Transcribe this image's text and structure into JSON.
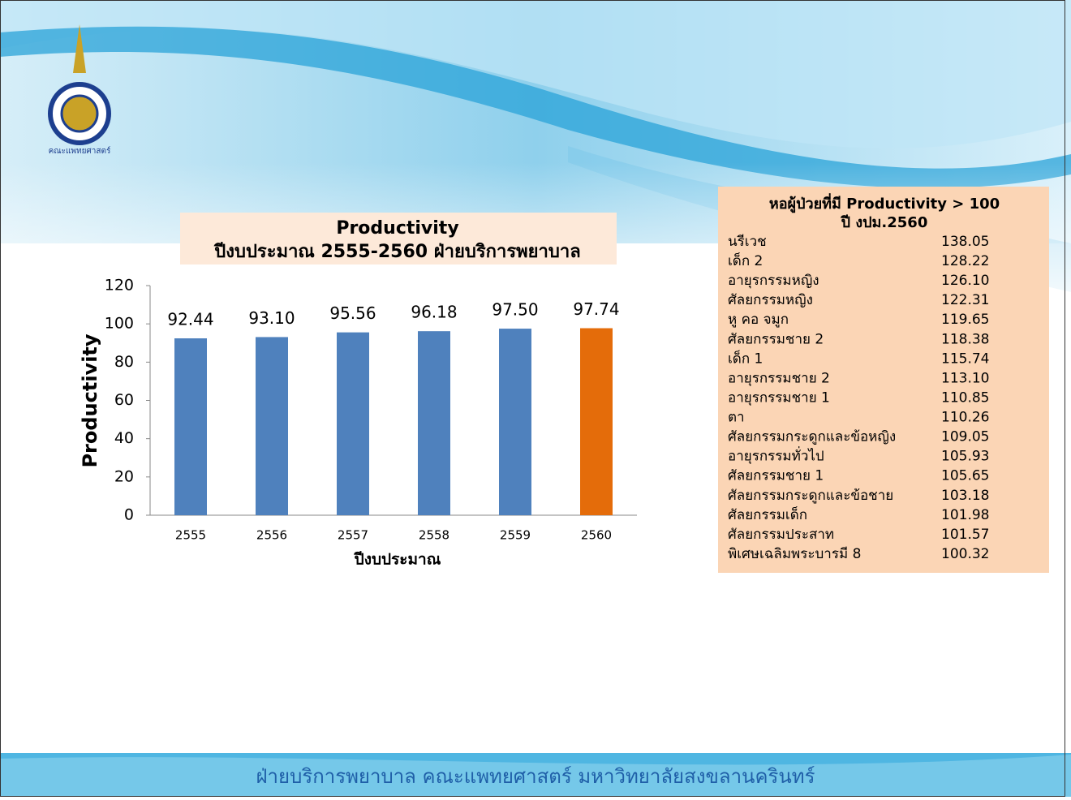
{
  "chart_data": {
    "type": "bar",
    "title": "Productivity",
    "subtitle": "ปีงบประมาณ 2555-2560 ฝ่ายบริการพยาบาล",
    "x_label": "ปีงบประมาณ",
    "y_label": "Productivity",
    "categories": [
      "2555",
      "2556",
      "2557",
      "2558",
      "2559",
      "2560"
    ],
    "values": [
      92.44,
      93.1,
      95.56,
      96.18,
      97.5,
      97.74
    ],
    "value_labels": [
      "92.44",
      "93.10",
      "95.56",
      "96.18",
      "97.50",
      "97.74"
    ],
    "colors": [
      "#4f81bd",
      "#4f81bd",
      "#4f81bd",
      "#4f81bd",
      "#4f81bd",
      "#e46c0a"
    ],
    "ylim": [
      0,
      120
    ],
    "yticks": [
      0,
      20,
      40,
      60,
      80,
      100,
      120
    ],
    "grid": false
  },
  "table": {
    "title": "หอผู้ป่วยที่มี Productivity > 100",
    "subtitle": "ปี งปม.2560",
    "rows": [
      [
        "นรีเวช",
        "138.05"
      ],
      [
        "เด็ก 2",
        "128.22"
      ],
      [
        "อายุรกรรมหญิง",
        "126.10"
      ],
      [
        "ศัลยกรรมหญิง",
        "122.31"
      ],
      [
        "หู คอ จมูก",
        "119.65"
      ],
      [
        "ศัลยกรรมชาย 2",
        "118.38"
      ],
      [
        "เด็ก 1",
        "115.74"
      ],
      [
        "อายุรกรรมชาย 2",
        "113.10"
      ],
      [
        "อายุรกรรมชาย 1",
        "110.85"
      ],
      [
        "ตา",
        "110.26"
      ],
      [
        "ศัลยกรรมกระดูกและข้อหญิง",
        "109.05"
      ],
      [
        "อายุรกรรมทั่วไป",
        "105.93"
      ],
      [
        "ศัลยกรรมชาย   1",
        "105.65"
      ],
      [
        "ศัลยกรรมกระดูกและข้อชาย",
        "103.18"
      ],
      [
        "ศัลยกรรมเด็ก",
        "101.98"
      ],
      [
        "ศัลยกรรมประสาท",
        "101.57"
      ],
      [
        "พิเศษเฉลิมพระบารมี 8",
        "100.32"
      ]
    ]
  },
  "logo_text": "คณะแพทยศาสตร์",
  "footer": "ฝ่ายบริการพยาบาล คณะแพทยศาสตร์ มหาวิทยาลัยสงขลานครินทร์"
}
